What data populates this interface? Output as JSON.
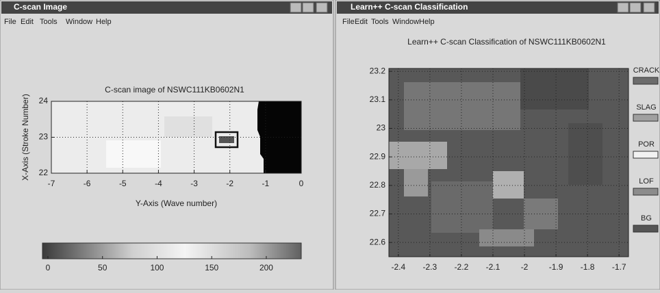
{
  "windows": [
    {
      "title": "C-scan Image",
      "menu": [
        "File",
        "Edit",
        "Tools",
        "Window",
        "Help"
      ],
      "chart": {
        "type": "heatmap",
        "title": "C-scan image of NSWC111KB0602N1",
        "xlabel": "Y-Axis (Wave number)",
        "ylabel": "X-Axis (Stroke Number)",
        "xlim": [
          -7,
          0
        ],
        "xticks": [
          -7,
          -6,
          -5,
          -4,
          -3,
          -2,
          -1,
          0
        ],
        "ylim": [
          22,
          24
        ],
        "yticks": [
          22,
          23,
          24
        ],
        "grid": true
      },
      "colorbar": {
        "lim": [
          -5,
          232
        ],
        "ticks": [
          0,
          50,
          100,
          150,
          200
        ]
      }
    },
    {
      "title": "Learn++ C-scan Classification",
      "menu": [
        "File",
        "Edit",
        "Tools",
        "Window",
        "Help"
      ],
      "chart": {
        "type": "heatmap",
        "title": "Learn++ C-scan Classification of NSWC111KB0602N1",
        "xlim": [
          -2.43,
          -1.67
        ],
        "xticks": [
          -2.4,
          -2.3,
          -2.2,
          -2.1,
          -2,
          -1.9,
          -1.8,
          -1.7
        ],
        "ylim": [
          22.55,
          23.21
        ],
        "yticks": [
          22.6,
          22.7,
          22.8,
          22.9,
          23,
          23.1,
          23.2
        ],
        "grid": true
      },
      "legend": [
        {
          "name": "CRACK",
          "color": "#6c6c6c"
        },
        {
          "name": "SLAG",
          "color": "#a0a0a0"
        },
        {
          "name": "POR",
          "color": "#f2f2f2"
        },
        {
          "name": "LOF",
          "color": "#8c8c8c"
        },
        {
          "name": "BG",
          "color": "#555555"
        }
      ]
    }
  ]
}
